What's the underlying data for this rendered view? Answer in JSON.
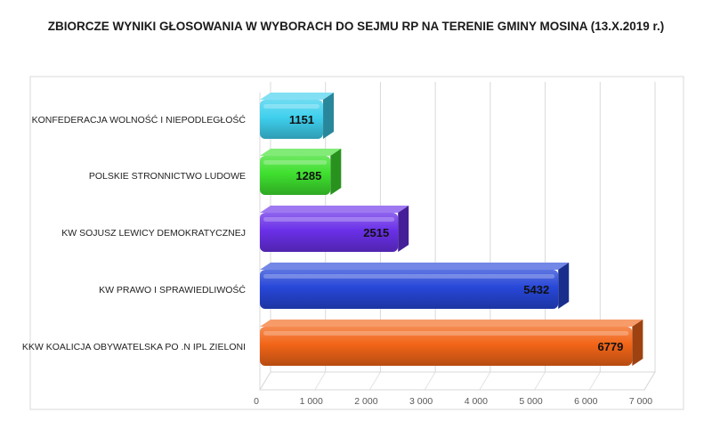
{
  "chart_data": {
    "type": "bar",
    "orientation": "horizontal",
    "title": "ZBIORCZE WYNIKI GŁOSOWANIA W WYBORACH DO SEJMU RP NA TERENIE GMINY MOSINA (13.X.2019 r.)",
    "categories": [
      "KONFEDERACJA WOLNOŚĆ I NIEPODLEGŁOŚĆ",
      "POLSKIE STRONNICTWO LUDOWE",
      "KW SOJUSZ LEWICY DEMOKRATYCZNEJ",
      "KW PRAWO I SPRAWIEDLIWOŚĆ",
      "KKW KOALICJA OBYWATELSKA PO .N IPL ZIELONI"
    ],
    "values": [
      1151,
      1285,
      2515,
      5432,
      6779
    ],
    "data_labels": [
      "1151",
      "1285",
      "2515",
      "5432",
      "6779"
    ],
    "colors": [
      "#3fd0ee",
      "#3fe02f",
      "#6a30e8",
      "#2747d8",
      "#f26518"
    ],
    "x_ticks": [
      0,
      1000,
      2000,
      3000,
      4000,
      5000,
      6000,
      7000
    ],
    "x_tick_labels": [
      "0",
      "1 000",
      "2 000",
      "3 000",
      "4 000",
      "5 000",
      "6 000",
      "7 000"
    ],
    "xlim": [
      0,
      7000
    ],
    "grid": true,
    "legend": "none"
  }
}
